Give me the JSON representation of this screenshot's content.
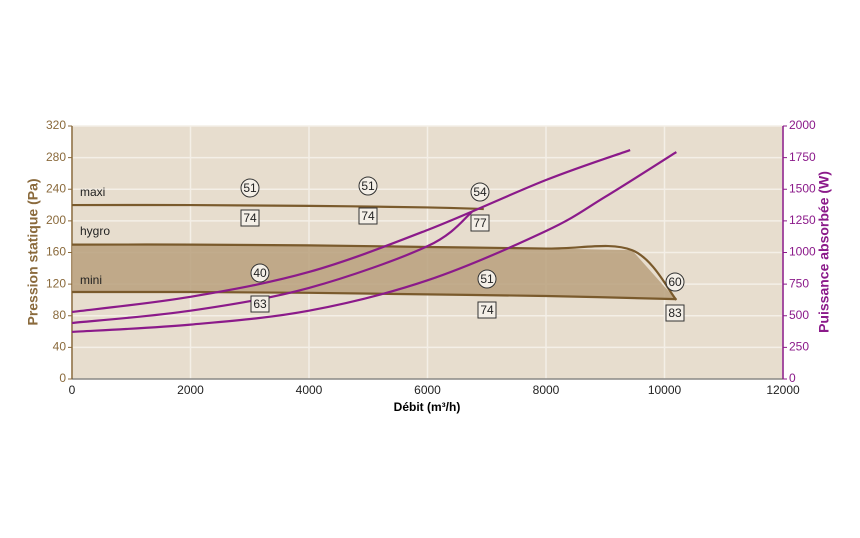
{
  "chart_data": {
    "type": "line",
    "xlabel": "Débit (m³/h)",
    "ylabel": "Pression statique (Pa)",
    "y2label": "Puissance absorbée (W)",
    "xlim": [
      0,
      12000
    ],
    "xticks": [
      0,
      2000,
      4000,
      6000,
      8000,
      10000,
      12000
    ],
    "ylim": [
      0,
      320
    ],
    "yticks": [
      0,
      40,
      80,
      120,
      160,
      200,
      240,
      280,
      320
    ],
    "y2lim": [
      0,
      2000
    ],
    "y2ticks": [
      0,
      250,
      500,
      750,
      1000,
      1250,
      1500,
      1750,
      2000
    ],
    "grid": true,
    "series": [
      {
        "name": "maxi",
        "color": "#7a5a2c",
        "x": [
          0,
          2000,
          4000,
          6000,
          6950
        ],
        "values": [
          220,
          220,
          219,
          217,
          215
        ]
      },
      {
        "name": "hygro",
        "color": "#7a5a2c",
        "x": [
          0,
          2000,
          4000,
          6000,
          8000,
          9450,
          10200
        ],
        "values": [
          170,
          170,
          169,
          167,
          165,
          163,
          100
        ]
      },
      {
        "name": "mini",
        "color": "#7a5a2c",
        "x": [
          0,
          2000,
          4000,
          6000,
          8000,
          10200
        ],
        "values": [
          110,
          110,
          109,
          107,
          105,
          101
        ]
      },
      {
        "color": "#8b1a8a",
        "axis": "y2",
        "x": [
          0,
          2000,
          4000,
          6000,
          8000,
          9420
        ],
        "values": [
          530,
          650,
          846,
          1178,
          1573,
          1810
        ]
      },
      {
        "color": "#8b1a8a",
        "axis": "y2",
        "x": [
          0,
          2000,
          4000,
          6000,
          6750
        ],
        "values": [
          443,
          540,
          720,
          1050,
          1320
        ]
      },
      {
        "color": "#8b1a8a",
        "axis": "y2",
        "x": [
          0,
          2000,
          4000,
          6000,
          8000,
          9000,
          10200
        ],
        "values": [
          372,
          430,
          540,
          780,
          1170,
          1440,
          1794
        ]
      }
    ],
    "fill_between": [
      1,
      2
    ],
    "fill_color": "#b9a07c",
    "circled_labels": [
      51,
      51,
      54,
      40,
      51,
      60
    ],
    "boxed_labels": [
      74,
      74,
      77,
      63,
      74,
      83
    ]
  }
}
